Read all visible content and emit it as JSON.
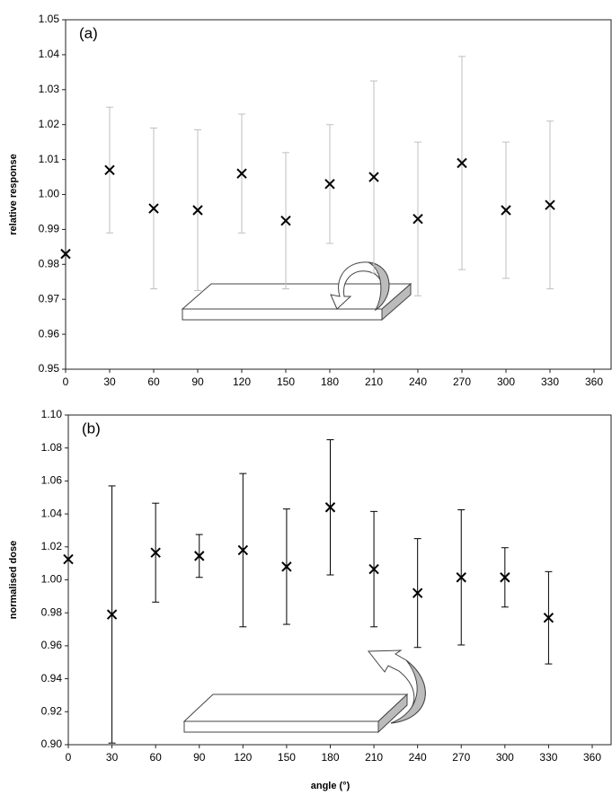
{
  "chart_data": [
    {
      "type": "scatter",
      "annotation": "(a)",
      "y_label": "relative response",
      "x": [
        0,
        30,
        60,
        90,
        120,
        150,
        180,
        210,
        240,
        270,
        300,
        330
      ],
      "series": [
        {
          "color": "#000000",
          "error_color": "#bfbfbf",
          "values": [
            0.983,
            1.007,
            0.996,
            0.9955,
            1.006,
            0.9925,
            1.003,
            1.005,
            0.993,
            1.009,
            0.9955,
            0.997
          ],
          "errors": [
            null,
            0.018,
            0.023,
            0.023,
            0.017,
            0.0195,
            0.017,
            0.0275,
            0.022,
            0.0305,
            0.0195,
            0.024
          ]
        }
      ],
      "xlim": [
        0,
        360
      ],
      "xticks": [
        0,
        30,
        60,
        90,
        120,
        150,
        180,
        210,
        240,
        270,
        300,
        330,
        360
      ],
      "ylim": [
        0.95,
        1.05
      ],
      "yticks": [
        0.95,
        0.96,
        0.97,
        0.98,
        0.99,
        {
          "value": 1,
          "label": "1.00"
        },
        1.01,
        1.02,
        1.03,
        1.04,
        1.05
      ]
    },
    {
      "type": "scatter",
      "annotation": "(b)",
      "y_label": "normalised dose",
      "x_label": "angle (°)",
      "x": [
        0,
        30,
        60,
        90,
        120,
        150,
        180,
        210,
        240,
        270,
        300,
        330
      ],
      "series": [
        {
          "color": "#000000",
          "error_color": "#000000",
          "values": [
            1.0125,
            0.979,
            1.0165,
            1.0145,
            1.018,
            1.008,
            1.044,
            1.0065,
            0.992,
            1.0015,
            1.0015,
            0.977
          ],
          "errors": [
            null,
            0.078,
            0.03,
            0.013,
            0.0465,
            0.035,
            0.041,
            0.035,
            0.033,
            0.041,
            0.018,
            0.028
          ]
        }
      ],
      "xlim": [
        0,
        360
      ],
      "xticks": [
        0,
        30,
        60,
        90,
        120,
        150,
        180,
        210,
        240,
        270,
        300,
        330,
        360
      ],
      "ylim": [
        0.9,
        1.1
      ],
      "yticks": [
        {
          "value": 0.9,
          "label": "0.90"
        },
        0.92,
        0.94,
        0.96,
        0.98,
        {
          "value": 1,
          "label": "1.00"
        },
        1.02,
        1.04,
        1.06,
        1.08,
        {
          "value": 1.1,
          "label": "1.10"
        }
      ]
    }
  ]
}
